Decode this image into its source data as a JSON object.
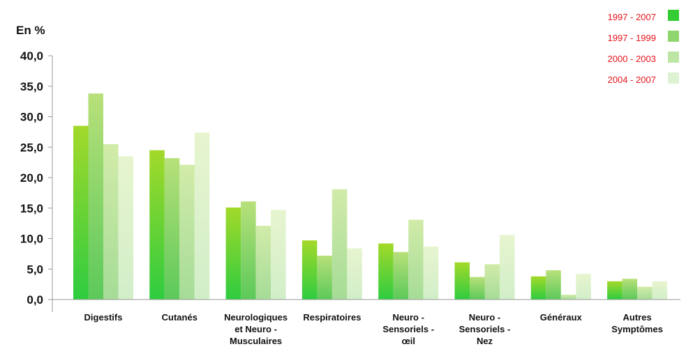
{
  "chart_data": {
    "type": "bar",
    "ylabel": "En %",
    "ylim": [
      0,
      40
    ],
    "y_ticks": [
      "0,0",
      "5,0",
      "10,0",
      "15,0",
      "20,0",
      "25,0",
      "30,0",
      "35,0",
      "40,0"
    ],
    "grid": false,
    "legend_position": "top-right",
    "categories": [
      [
        "Digestifs"
      ],
      [
        "Cutanés"
      ],
      [
        "Neurologiques",
        "et Neuro -",
        "Musculaires"
      ],
      [
        "Respiratoires"
      ],
      [
        "Neuro -",
        "Sensoriels -",
        "œil"
      ],
      [
        "Neuro -",
        "Sensoriels -",
        "Nez"
      ],
      [
        "Généraux"
      ],
      [
        "Autres",
        "Symptômes"
      ]
    ],
    "series": [
      {
        "name": "1997 - 2007",
        "color_top": "#a3d92a",
        "color_bottom": "#2ecc40",
        "legend_color": "#33cc33",
        "values": [
          28.5,
          24.5,
          15.1,
          9.7,
          9.2,
          6.1,
          3.8,
          3.0
        ]
      },
      {
        "name": "1997 - 1999",
        "color_top": "#b8e07a",
        "color_bottom": "#5cc95a",
        "legend_color": "#8fd66e",
        "values": [
          33.8,
          23.2,
          16.1,
          7.2,
          7.8,
          3.7,
          4.8,
          3.4
        ]
      },
      {
        "name": "2000 - 2003",
        "color_top": "#d2eba9",
        "color_bottom": "#a5dc97",
        "legend_color": "#bde6a4",
        "values": [
          25.5,
          22.1,
          12.1,
          18.1,
          13.1,
          5.8,
          0.8,
          2.1
        ]
      },
      {
        "name": "2004 - 2007",
        "color_top": "#e7f5cf",
        "color_bottom": "#d1eec9",
        "legend_color": "#ddf1d3",
        "values": [
          23.5,
          27.4,
          14.7,
          8.4,
          8.7,
          10.6,
          4.2,
          3.0
        ]
      }
    ],
    "legend_text_color": "#e8141b"
  }
}
